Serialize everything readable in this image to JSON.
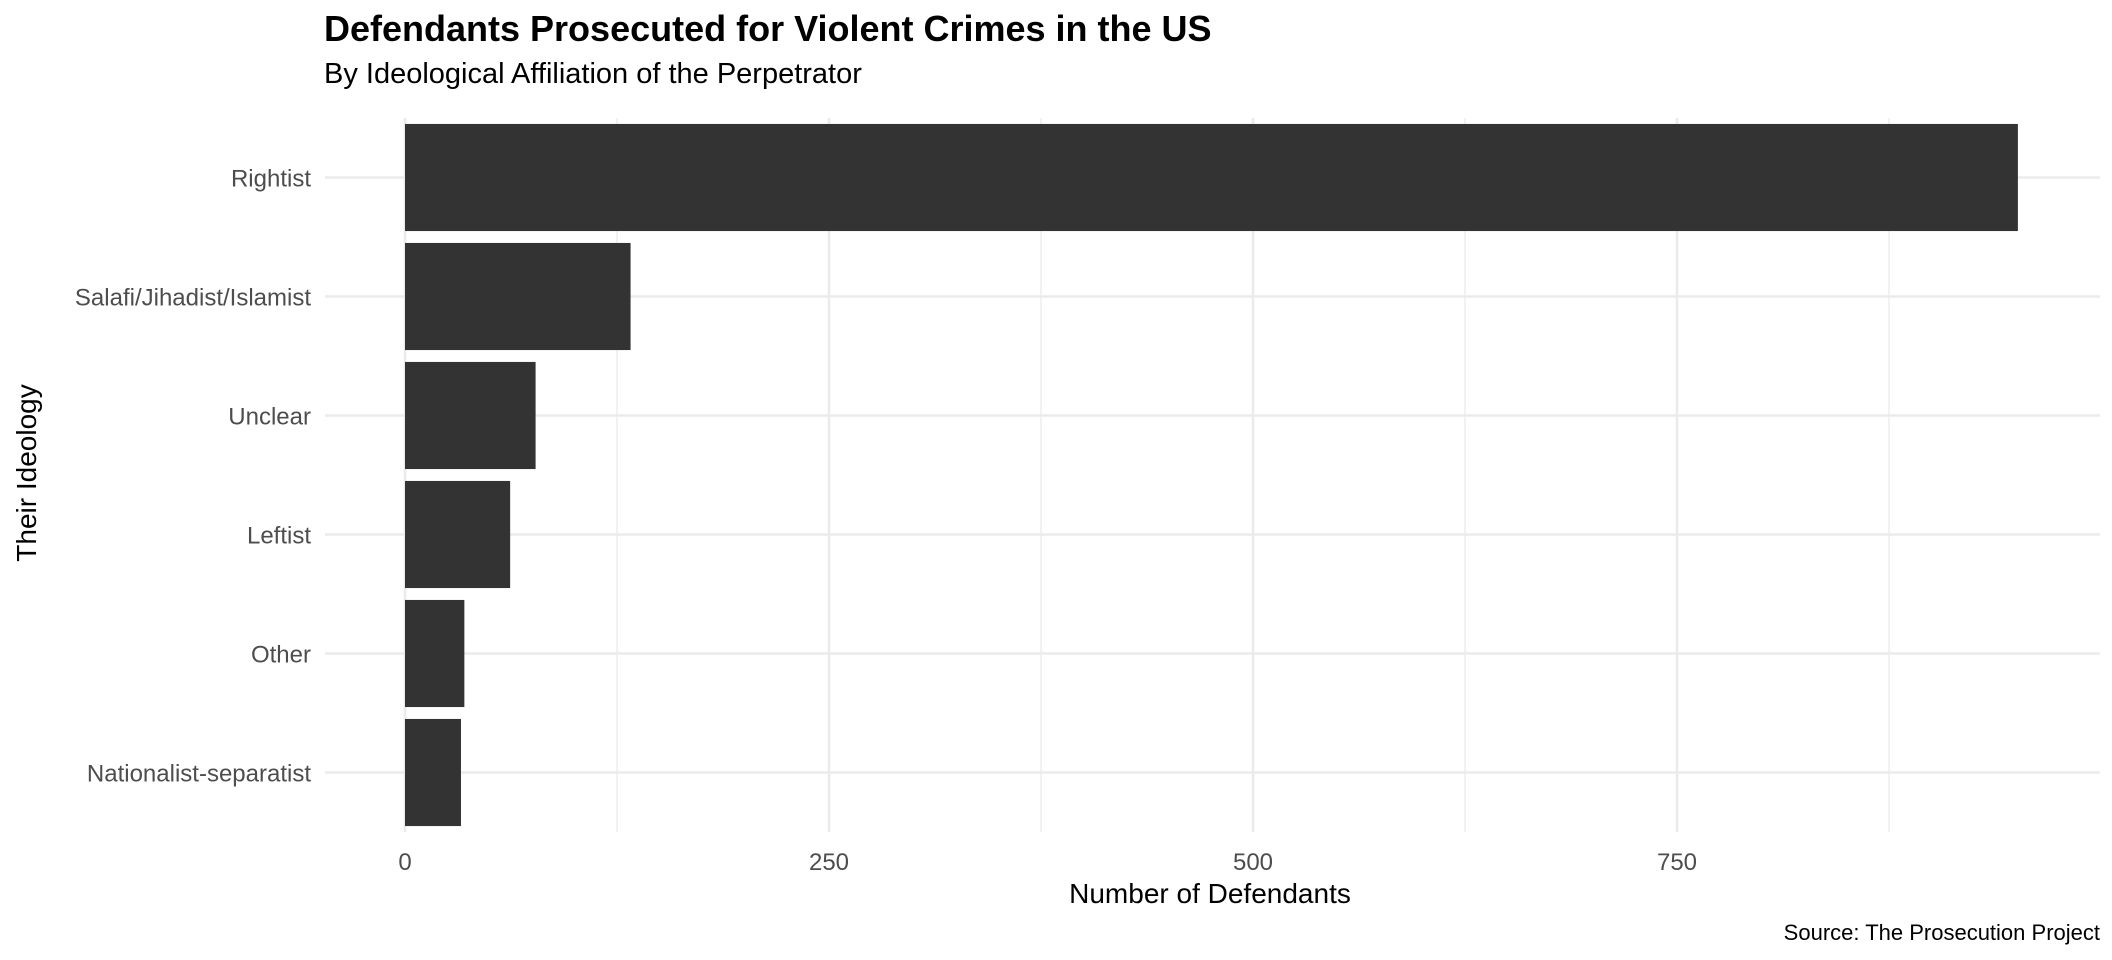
{
  "chart_data": {
    "type": "bar",
    "orientation": "horizontal",
    "title": "Defendants Prosecuted for Violent Crimes in the US",
    "subtitle": "By Ideological Affiliation of the Perpetrator",
    "xlabel": "Number of Defendants",
    "ylabel": "Their Ideology",
    "caption": "Source: The Prosecution Project",
    "categories": [
      "Rightist",
      "Salafi/Jihadist/Islamist",
      "Unclear",
      "Leftist",
      "Other",
      "Nationalist-separatist"
    ],
    "values": [
      951,
      133,
      77,
      62,
      35,
      33
    ],
    "xticks": [
      0,
      250,
      500,
      750
    ],
    "xlim": [
      -47,
      1003
    ],
    "grid": true,
    "bar_color": "#333333"
  }
}
